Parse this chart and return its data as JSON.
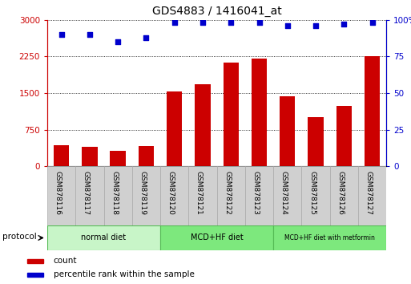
{
  "title": "GDS4883 / 1416041_at",
  "samples": [
    "GSM878116",
    "GSM878117",
    "GSM878118",
    "GSM878119",
    "GSM878120",
    "GSM878121",
    "GSM878122",
    "GSM878123",
    "GSM878124",
    "GSM878125",
    "GSM878126",
    "GSM878127"
  ],
  "counts": [
    430,
    400,
    310,
    410,
    1530,
    1680,
    2130,
    2200,
    1430,
    1000,
    1230,
    2260
  ],
  "percentile_ranks": [
    90,
    90,
    85,
    88,
    98,
    98,
    98,
    98,
    96,
    96,
    97,
    98
  ],
  "bar_color": "#cc0000",
  "dot_color": "#0000cc",
  "ylim_left": [
    0,
    3000
  ],
  "ylim_right": [
    0,
    100
  ],
  "yticks_left": [
    0,
    750,
    1500,
    2250,
    3000
  ],
  "ytick_labels_left": [
    "0",
    "750",
    "1500",
    "2250",
    "3000"
  ],
  "yticks_right": [
    0,
    25,
    50,
    75,
    100
  ],
  "ytick_labels_right": [
    "0",
    "25",
    "50",
    "75",
    "100%"
  ],
  "group_normal_color": "#c8f5c8",
  "group_mcd_color": "#7de87d",
  "group_border_color": "#55bb55",
  "sample_box_color": "#d0d0d0",
  "sample_box_border": "#aaaaaa",
  "protocol_label": "protocol",
  "legend_count_label": "count",
  "legend_pct_label": "percentile rank within the sample",
  "bg_color": "#ffffff",
  "plot_bg_color": "#ffffff",
  "tick_label_color_left": "#cc0000",
  "tick_label_color_right": "#0000cc",
  "bar_width": 0.55
}
